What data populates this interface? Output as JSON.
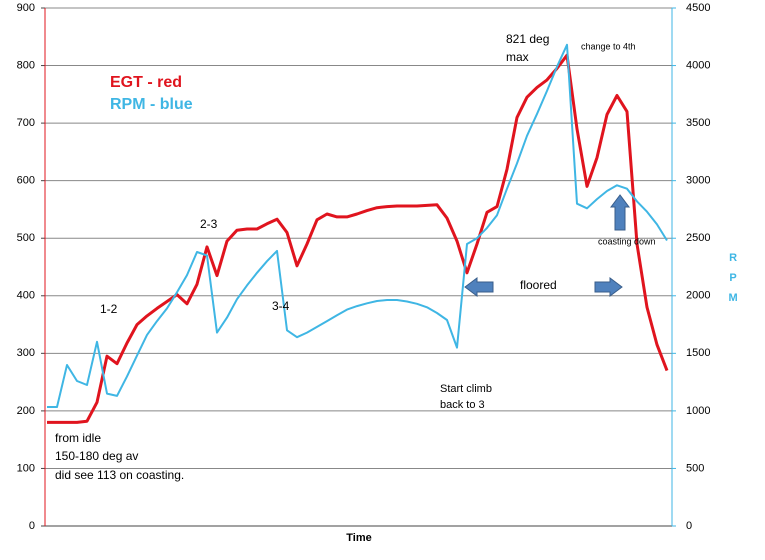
{
  "chart_data": {
    "type": "line",
    "x_label": "Time",
    "y2_label": "RPM",
    "ylim": [
      0,
      900
    ],
    "yticks": [
      0,
      100,
      200,
      300,
      400,
      500,
      600,
      700,
      800,
      900
    ],
    "y2lim": [
      0,
      4500
    ],
    "y2ticks": [
      0,
      500,
      1000,
      1500,
      2000,
      2500,
      3000,
      3500,
      4000,
      4500
    ],
    "grid": true,
    "series": [
      {
        "name": "EGT - red",
        "color": "#e0141e",
        "values": [
          180,
          180,
          180,
          180,
          182,
          215,
          295,
          282,
          318,
          350,
          365,
          378,
          390,
          402,
          386,
          420,
          485,
          435,
          495,
          514,
          516,
          516,
          525,
          533,
          510,
          452,
          490,
          532,
          542,
          537,
          537,
          542,
          548,
          553,
          555,
          556,
          556,
          556,
          557,
          558,
          535,
          495,
          440,
          490,
          545,
          555,
          620,
          710,
          745,
          762,
          775,
          795,
          818,
          690,
          590,
          640,
          715,
          748,
          720,
          490,
          380,
          315,
          270
        ]
      },
      {
        "name": "RPM - blue",
        "color": "#3fb6e4",
        "axis": "y2",
        "values": [
          1034,
          1034,
          1399,
          1260,
          1225,
          1600,
          1150,
          1130,
          1300,
          1480,
          1660,
          1780,
          1890,
          2030,
          2180,
          2380,
          2350,
          1680,
          1810,
          1970,
          2090,
          2200,
          2300,
          2390,
          1700,
          1640,
          1680,
          1730,
          1780,
          1830,
          1880,
          1910,
          1935,
          1955,
          1963,
          1963,
          1950,
          1930,
          1900,
          1850,
          1790,
          1550,
          2450,
          2500,
          2590,
          2700,
          2930,
          3150,
          3390,
          3580,
          3780,
          3990,
          4180,
          2800,
          2760,
          2840,
          2910,
          2960,
          2930,
          2820,
          2730,
          2620,
          2480
        ]
      }
    ],
    "annotations": [
      "821 deg",
      "max",
      "change to 4th",
      "1-2",
      "2-3",
      "3-4",
      "Start climb",
      "back to 3",
      "floored",
      "coasting down",
      "from idle",
      "150-180 deg av",
      "did see 113 on coasting."
    ]
  }
}
